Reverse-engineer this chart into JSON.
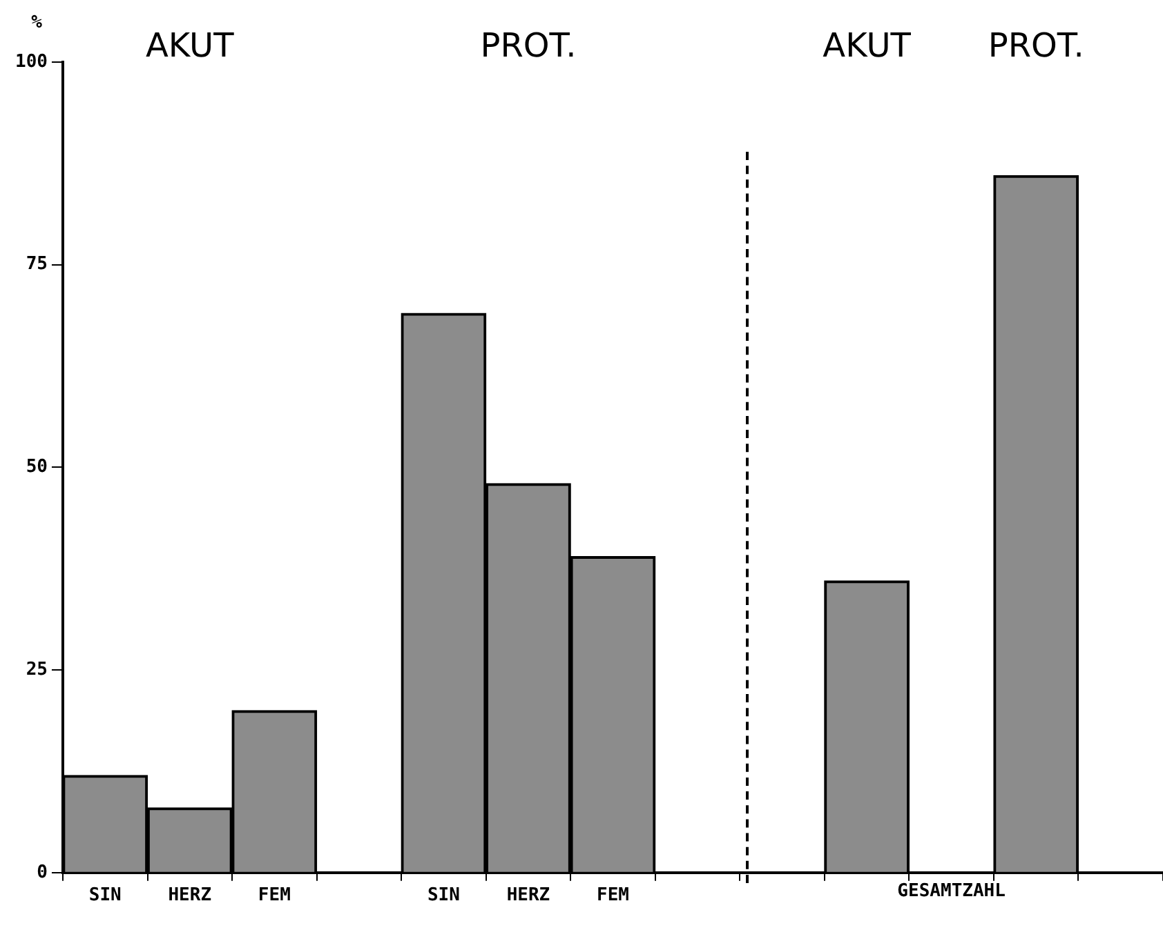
{
  "chart_data": {
    "type": "bar",
    "ylabel": "%",
    "categories": [
      "SIN",
      "HERZ",
      "FEM",
      null,
      "SIN",
      "HERZ",
      "FEM",
      null,
      null,
      null,
      null,
      null,
      null
    ],
    "values": [
      12,
      8,
      20,
      null,
      69,
      48,
      39,
      null,
      null,
      36,
      null,
      86,
      null
    ],
    "color": "#8c8c8c",
    "ylim": [
      0,
      100
    ],
    "yticks": [
      0,
      25,
      50,
      75,
      100
    ],
    "grid": false,
    "legend": false,
    "annotations": [
      "AKUT",
      "PROT.",
      "AKUT",
      "PROT.",
      "GESAMTZAHL"
    ]
  }
}
